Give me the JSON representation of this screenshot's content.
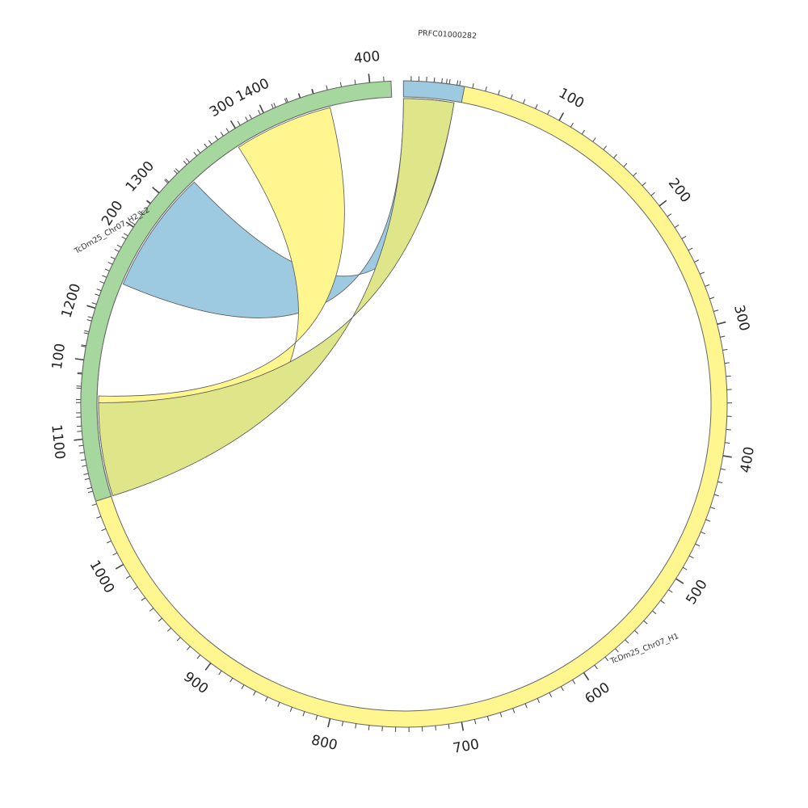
{
  "segments": [
    {
      "id": "h1",
      "label": "TcDm25_Chr07_H1",
      "length": 1450,
      "color": "#fff68f",
      "tick_labels": [
        "100",
        "200",
        "300",
        "400",
        "500",
        "600",
        "700",
        "800",
        "900",
        "1000",
        "1100",
        "1200",
        "1300",
        "1400"
      ]
    },
    {
      "id": "h2",
      "label": "TcDm25_Chr07_H2_c2",
      "length": 415,
      "color": "#a5d79f",
      "tick_labels": [
        "100",
        "200",
        "300",
        "400"
      ]
    },
    {
      "id": "prfc",
      "label": "PRFC01000282",
      "length": 80,
      "color": "#9ecae1",
      "tick_labels": []
    }
  ],
  "links": [
    {
      "from": "h1",
      "from_range": [
        1225,
        1325
      ],
      "to": "prfc",
      "to_range": [
        0,
        70
      ],
      "color": "#9ecae1"
    },
    {
      "from": "h1",
      "from_range": [
        1370,
        1450
      ],
      "to": "h2",
      "to_range": [
        0,
        75
      ],
      "color": "#fff68f"
    },
    {
      "from": "h2",
      "from_range": [
        0,
        70
      ],
      "to": "prfc",
      "to_range": [
        0,
        70
      ],
      "color": "#dfe589"
    }
  ]
}
